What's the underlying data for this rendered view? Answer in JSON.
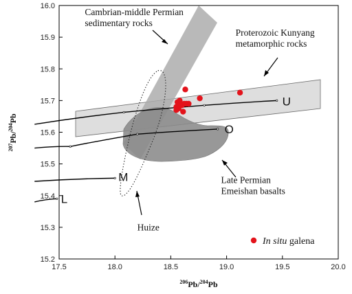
{
  "chart_data": {
    "type": "scatter",
    "title": "",
    "xlabel": {
      "sup": "206",
      "main": "Pb/",
      "sup2": "204",
      "main2": "Pb"
    },
    "ylabel": {
      "sup": "207",
      "main": "Pb/",
      "sup2": "204",
      "main2": "Pb"
    },
    "xlim": [
      17.5,
      20.0
    ],
    "ylim": [
      15.2,
      16.0
    ],
    "x_ticks": [
      "17.5",
      "18.0",
      "18.5",
      "19.0",
      "19.5",
      "20.0"
    ],
    "y_ticks": [
      "15.2",
      "15.3",
      "15.4",
      "15.5",
      "15.6",
      "15.7",
      "15.8",
      "15.9",
      "16.0"
    ],
    "grid": false,
    "point_color": "#e3131b",
    "series": [
      {
        "name": "In situ galena",
        "name_italic": "In situ",
        "name_rest": " galena",
        "x": [
          18.63,
          18.56,
          18.58,
          18.59,
          18.6,
          18.55,
          18.57,
          18.62,
          18.64,
          18.55,
          18.61,
          18.66,
          18.76,
          19.12
        ],
        "y": [
          15.735,
          15.695,
          15.7,
          15.69,
          15.685,
          15.68,
          15.675,
          15.69,
          15.69,
          15.67,
          15.665,
          15.69,
          15.707,
          15.725
        ]
      }
    ],
    "evolution_curves": [
      {
        "label": "U",
        "x": [
          17.28,
          18.08,
          18.8,
          19.45
        ],
        "y": [
          15.625,
          15.663,
          15.685,
          15.7
        ]
      },
      {
        "label": "O",
        "x": [
          17.28,
          17.6,
          18.2,
          18.92
        ],
        "y": [
          15.55,
          15.555,
          15.594,
          15.61
        ]
      },
      {
        "label": "M",
        "x": [
          17.28,
          18.0
        ],
        "y": [
          15.445,
          15.455
        ]
      },
      {
        "label": "L",
        "x": [
          17.28,
          17.48
        ],
        "y": [
          15.38,
          15.39
        ]
      }
    ],
    "annotations": [
      {
        "text_lines": [
          "Cambrian-middle Permian",
          "sedimentary rocks"
        ],
        "x": 17.73,
        "y": 15.97
      },
      {
        "text_lines": [
          "Proterozoic Kunyang",
          "metamorphic rocks"
        ],
        "x": 19.08,
        "y": 15.905
      },
      {
        "text_lines": [
          "Late Permian",
          "Emeishan basalts"
        ],
        "x": 18.95,
        "y": 15.44
      },
      {
        "text_lines": [
          "Huize"
        ],
        "x": 18.2,
        "y": 15.29
      }
    ]
  }
}
